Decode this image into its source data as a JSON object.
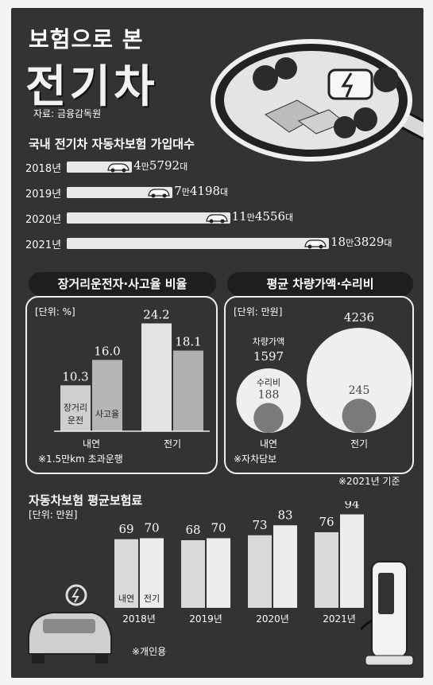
{
  "header": {
    "title_top": "보험으로 본",
    "title_main": "전기차",
    "source": "자료: 금융감독원"
  },
  "subscriptions": {
    "title": "국내 전기차 자동차보험 가입대수",
    "rows": [
      {
        "year": "2018년",
        "man": "4",
        "rest": "5792",
        "unit": "대",
        "value": 45792
      },
      {
        "year": "2019년",
        "man": "7",
        "rest": "4198",
        "unit": "대",
        "value": 74198
      },
      {
        "year": "2020년",
        "man": "11",
        "rest": "4556",
        "unit": "대",
        "value": 114556
      },
      {
        "year": "2021년",
        "man": "18",
        "rest": "3829",
        "unit": "대",
        "value": 183829
      }
    ],
    "man_label": "만"
  },
  "ratio_panel": {
    "title": "장거리운전자·사고율 비율",
    "unit": "[단위: %]",
    "groups": [
      {
        "label": "내연",
        "bars": [
          {
            "value": 10.3,
            "text": "10.3",
            "inner": [
              "장거리",
              "운전"
            ]
          },
          {
            "value": 16.0,
            "text": "16.0",
            "inner": [
              "사고율"
            ]
          }
        ]
      },
      {
        "label": "전기",
        "bars": [
          {
            "value": 24.2,
            "text": "24.2",
            "inner": []
          },
          {
            "value": 18.1,
            "text": "18.1",
            "inner": []
          }
        ]
      }
    ],
    "note": "※1.5만km 초과운행"
  },
  "price_panel": {
    "title": "평균 차량가액·수리비",
    "unit": "[단위: 만원]",
    "items": [
      {
        "label": "내연",
        "price_label": "차량가액",
        "price": "1597",
        "repair_label": "수리비",
        "repair": "188"
      },
      {
        "label": "전기",
        "price_label": "",
        "price": "4236",
        "repair_label": "",
        "repair": "245"
      }
    ],
    "note": "※자차담보",
    "base_note": "※2021년 기준"
  },
  "premium": {
    "title": "자동차보험 평균보험료",
    "unit": "[단위: 만원]",
    "series_labels": [
      "내연",
      "전기"
    ],
    "note": "※개인용"
  },
  "chart_data": [
    {
      "type": "bar",
      "title": "국내 전기차 자동차보험 가입대수",
      "categories": [
        "2018년",
        "2019년",
        "2020년",
        "2021년"
      ],
      "values": [
        45792,
        74198,
        114556,
        183829
      ]
    },
    {
      "type": "bar",
      "title": "장거리운전자·사고율 비율",
      "ylabel": "[단위: %]",
      "categories": [
        "내연",
        "전기"
      ],
      "series": [
        {
          "name": "장거리운전",
          "values": [
            10.3,
            24.2
          ]
        },
        {
          "name": "사고율",
          "values": [
            16.0,
            18.1
          ]
        }
      ]
    },
    {
      "type": "bar",
      "title": "평균 차량가액·수리비",
      "ylabel": "[단위: 만원]",
      "categories": [
        "내연",
        "전기"
      ],
      "series": [
        {
          "name": "차량가액",
          "values": [
            1597,
            4236
          ]
        },
        {
          "name": "수리비",
          "values": [
            188,
            245
          ]
        }
      ]
    },
    {
      "type": "bar",
      "title": "자동차보험 평균보험료",
      "ylabel": "[단위: 만원]",
      "categories": [
        "2018년",
        "2019년",
        "2020년",
        "2021년"
      ],
      "series": [
        {
          "name": "내연",
          "values": [
            69,
            68,
            73,
            76
          ]
        },
        {
          "name": "전기",
          "values": [
            70,
            70,
            83,
            94
          ]
        }
      ]
    }
  ],
  "colors": {
    "bg": "#333333",
    "bar_light": "#e6e6e6",
    "bar_mid": "#bdbdbd",
    "bar_dark": "#8f8f8f"
  }
}
